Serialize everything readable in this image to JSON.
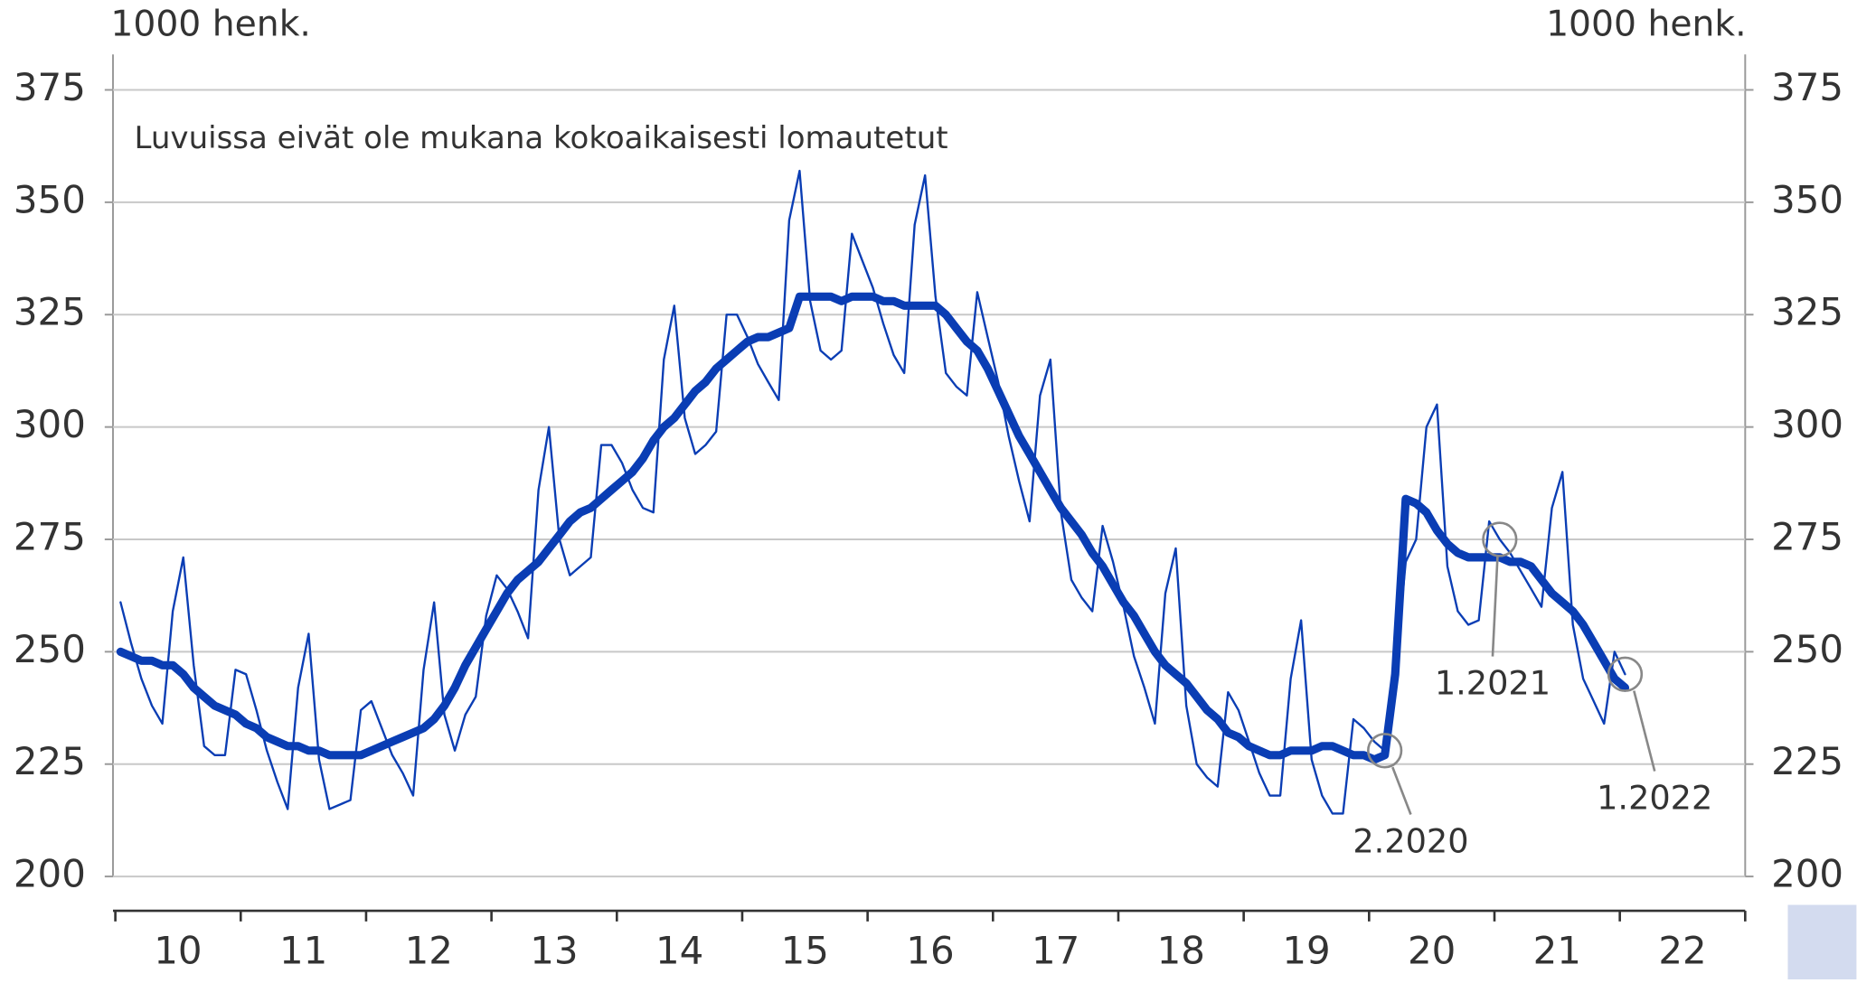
{
  "chart_data": {
    "type": "line",
    "note": "Luvuissa eivät ole mukana kokoaikaisesti lomautetut",
    "y_label": "1000 henk.",
    "y2_label": "1000 henk.",
    "x": [
      10.042,
      10.125,
      10.208,
      10.292,
      10.375,
      10.458,
      10.542,
      10.625,
      10.708,
      10.792,
      10.875,
      10.958,
      11.042,
      11.125,
      11.208,
      11.292,
      11.375,
      11.458,
      11.542,
      11.625,
      11.708,
      11.792,
      11.875,
      11.958,
      12.042,
      12.125,
      12.208,
      12.292,
      12.375,
      12.458,
      12.542,
      12.625,
      12.708,
      12.792,
      12.875,
      12.958,
      13.042,
      13.125,
      13.208,
      13.292,
      13.375,
      13.458,
      13.542,
      13.625,
      13.708,
      13.792,
      13.875,
      13.958,
      14.042,
      14.125,
      14.208,
      14.292,
      14.375,
      14.458,
      14.542,
      14.625,
      14.708,
      14.792,
      14.875,
      14.958,
      15.042,
      15.125,
      15.208,
      15.292,
      15.375,
      15.458,
      15.542,
      15.625,
      15.708,
      15.792,
      15.875,
      15.958,
      16.042,
      16.125,
      16.208,
      16.292,
      16.375,
      16.458,
      16.542,
      16.625,
      16.708,
      16.792,
      16.875,
      16.958,
      17.042,
      17.125,
      17.208,
      17.292,
      17.375,
      17.458,
      17.542,
      17.625,
      17.708,
      17.792,
      17.875,
      17.958,
      18.042,
      18.125,
      18.208,
      18.292,
      18.375,
      18.458,
      18.542,
      18.625,
      18.708,
      18.792,
      18.875,
      18.958,
      19.042,
      19.125,
      19.208,
      19.292,
      19.375,
      19.458,
      19.542,
      19.625,
      19.708,
      19.792,
      19.875,
      19.958,
      20.042,
      20.125,
      20.208,
      20.292,
      20.375,
      20.458,
      20.542,
      20.625,
      20.708,
      20.792,
      20.875,
      20.958,
      21.042,
      21.125,
      21.208,
      21.292,
      21.375,
      21.458,
      21.542,
      21.625,
      21.708,
      21.792,
      21.875,
      21.958,
      22.042
    ],
    "series": [
      {
        "color": "#0a3db4",
        "width": 1.8,
        "values": [
          261,
          252,
          244,
          238,
          234,
          259,
          271,
          247,
          229,
          227,
          227,
          246,
          245,
          237,
          228,
          221,
          215,
          242,
          254,
          226,
          215,
          216,
          217,
          237,
          239,
          233,
          227,
          223,
          218,
          246,
          261,
          236,
          228,
          236,
          240,
          258,
          267,
          264,
          259,
          253,
          286,
          300,
          275,
          267,
          269,
          271,
          296,
          296,
          292,
          286,
          282,
          281,
          315,
          327,
          302,
          294,
          296,
          299,
          325,
          325,
          320,
          314,
          310,
          306,
          346,
          357,
          328,
          317,
          315,
          317,
          343,
          337,
          331,
          323,
          316,
          312,
          345,
          356,
          329,
          312,
          309,
          307,
          330,
          320,
          310,
          298,
          288,
          279,
          307,
          315,
          281,
          266,
          262,
          259,
          278,
          270,
          260,
          249,
          242,
          234,
          263,
          273,
          238,
          225,
          222,
          220,
          241,
          237,
          230,
          223,
          218,
          218,
          244,
          257,
          226,
          218,
          214,
          214,
          235,
          233,
          230,
          228,
          245,
          270,
          275,
          300,
          305,
          269,
          259,
          256,
          257,
          279,
          275,
          272,
          268,
          264,
          260,
          282,
          290,
          256,
          244,
          239,
          234,
          250,
          245
        ]
      },
      {
        "color": "#0a3db4",
        "width": 7,
        "values": [
          250,
          249,
          248,
          248,
          247,
          247,
          245,
          242,
          240,
          238,
          237,
          236,
          234,
          233,
          231,
          230,
          229,
          229,
          228,
          228,
          227,
          227,
          227,
          227,
          228,
          229,
          230,
          231,
          232,
          233,
          235,
          238,
          242,
          247,
          251,
          255,
          259,
          263,
          266,
          268,
          270,
          273,
          276,
          279,
          281,
          282,
          284,
          286,
          288,
          290,
          293,
          297,
          300,
          302,
          305,
          308,
          310,
          313,
          315,
          317,
          319,
          320,
          320,
          321,
          322,
          329,
          329,
          329,
          329,
          328,
          329,
          329,
          329,
          328,
          328,
          327,
          327,
          327,
          327,
          325,
          322,
          319,
          317,
          313,
          308,
          303,
          298,
          294,
          290,
          286,
          282,
          279,
          276,
          272,
          269,
          265,
          261,
          258,
          254,
          250,
          247,
          245,
          243,
          240,
          237,
          235,
          232,
          231,
          229,
          228,
          227,
          227,
          228,
          228,
          228,
          229,
          229,
          228,
          227,
          227,
          226,
          227,
          245,
          284,
          283,
          281,
          277,
          274,
          272,
          271,
          271,
          271,
          271,
          270,
          270,
          269,
          266,
          263,
          261,
          259,
          256,
          252,
          248,
          244,
          242
        ]
      }
    ],
    "annotations": [
      {
        "text": "2.2020",
        "x": 20.125,
        "y": 228
      },
      {
        "text": "1.2021",
        "x": 21.042,
        "y": 275
      },
      {
        "text": "1.2022",
        "x": 22.042,
        "y": 245
      }
    ],
    "xlim": [
      10,
      23
    ],
    "xticks": [
      {
        "value": 10.5,
        "label": "10"
      },
      {
        "value": 11.5,
        "label": "11"
      },
      {
        "value": 12.5,
        "label": "12"
      },
      {
        "value": 13.5,
        "label": "13"
      },
      {
        "value": 14.5,
        "label": "14"
      },
      {
        "value": 15.5,
        "label": "15"
      },
      {
        "value": 16.5,
        "label": "16"
      },
      {
        "value": 17.5,
        "label": "17"
      },
      {
        "value": 18.5,
        "label": "18"
      },
      {
        "value": 19.5,
        "label": "19"
      },
      {
        "value": 20.5,
        "label": "20"
      },
      {
        "value": 21.5,
        "label": "21"
      },
      {
        "value": 22.5,
        "label": "22"
      }
    ],
    "ylim": [
      200,
      375
    ],
    "yticks": [
      200,
      225,
      250,
      275,
      300,
      325,
      350,
      375
    ],
    "y2lim": [
      200,
      375
    ],
    "y2ticks": [
      200,
      225,
      250,
      275,
      300,
      325,
      350,
      375
    ],
    "grid": true
  }
}
